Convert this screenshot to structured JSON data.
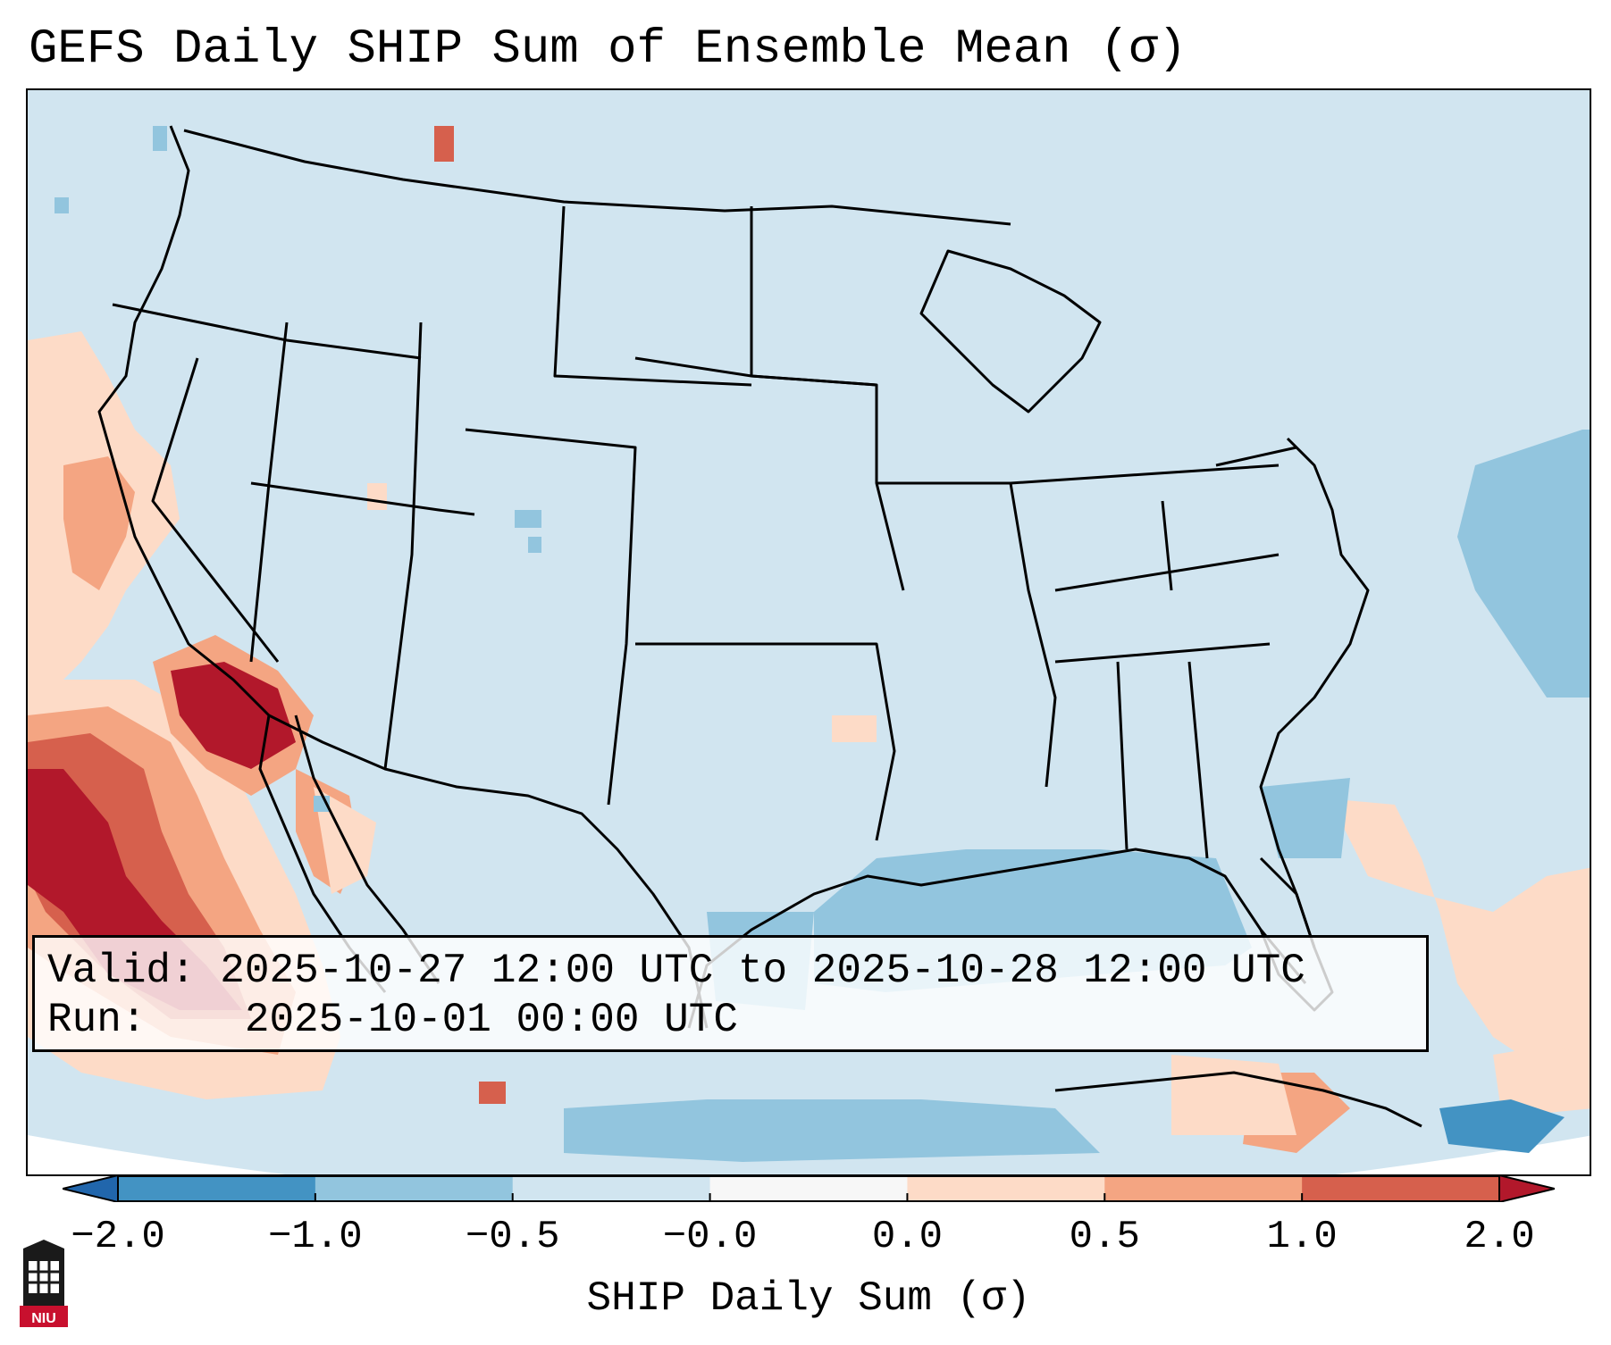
{
  "title": "GEFS Daily SHIP Sum of Ensemble Mean (σ)",
  "info": {
    "valid_label": "Valid:",
    "valid_value": "2025-10-27 12:00 UTC to 2025-10-28 12:00 UTC",
    "run_label": "Run:",
    "run_value": "2025-10-01 00:00 UTC"
  },
  "colorbar": {
    "label": "SHIP Daily Sum (σ)",
    "ticks": [
      "−2.0",
      "−1.0",
      "−0.5",
      "−0.0",
      "0.0",
      "0.5",
      "1.0",
      "2.0"
    ],
    "colors": [
      "#4393c3",
      "#92c5de",
      "#d1e5f0",
      "#f7f7f7",
      "#fddbc7",
      "#f4a582",
      "#d6604d",
      "#b2182b"
    ],
    "under_color": "#2166ac",
    "over_color": "#67001f"
  },
  "logo": {
    "icon": "niu-logo-icon",
    "text": "NIU"
  }
}
